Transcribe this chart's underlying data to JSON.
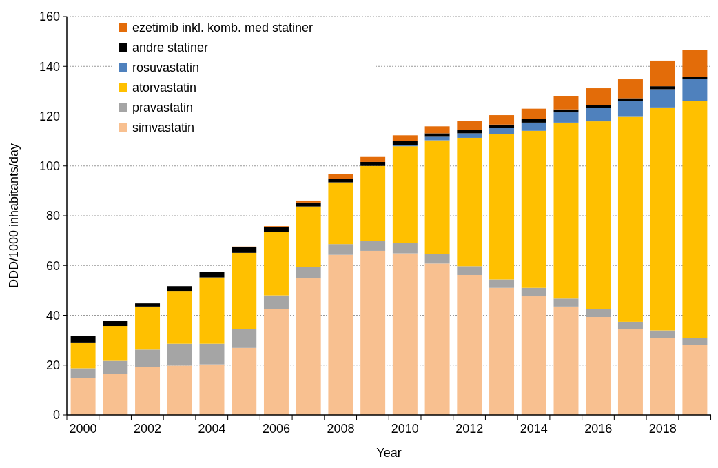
{
  "chart_data": {
    "type": "bar",
    "stacked": true,
    "xlabel": "Year",
    "ylabel": "DDD/1000 inhabitants/day",
    "categories": [
      "2000",
      null,
      "2002",
      null,
      "2004",
      null,
      "2006",
      null,
      "2008",
      null,
      "2010",
      null,
      "2012",
      null,
      "2014",
      null,
      "2016",
      null,
      "2018",
      null
    ],
    "ylim": [
      0,
      160
    ],
    "yticks": [
      0,
      20,
      40,
      60,
      80,
      100,
      120,
      140,
      160
    ],
    "grid": "y",
    "legend": "top left",
    "series": [
      {
        "name": "simvastatin",
        "color": "#f8c090",
        "values": [
          14.9,
          16.5,
          19.1,
          19.8,
          20.3,
          26.9,
          42.6,
          54.8,
          64.3,
          65.9,
          64.9,
          60.8,
          56.2,
          51.0,
          47.6,
          43.5,
          39.3,
          34.5,
          31.0,
          28.2
        ]
      },
      {
        "name": "pravastatin",
        "color": "#a5a5a5",
        "values": [
          3.8,
          5.2,
          7.1,
          8.8,
          8.3,
          7.6,
          5.4,
          4.7,
          4.3,
          4.1,
          4.1,
          3.9,
          3.5,
          3.4,
          3.4,
          3.2,
          3.2,
          2.9,
          2.9,
          2.7
        ]
      },
      {
        "name": "atorvastatin",
        "color": "#ffc000",
        "values": [
          10.4,
          14.0,
          17.3,
          21.2,
          26.6,
          30.6,
          25.5,
          24.2,
          24.8,
          30.0,
          38.9,
          45.6,
          51.6,
          58.3,
          63.1,
          70.7,
          75.4,
          82.3,
          89.6,
          95.1
        ]
      },
      {
        "name": "rosuvastatin",
        "color": "#4f81bd",
        "values": [
          0,
          0,
          0,
          0,
          0,
          0,
          0,
          0,
          0,
          0,
          0.6,
          1.4,
          1.8,
          2.6,
          3.3,
          4.1,
          5.3,
          6.4,
          7.3,
          8.8
        ]
      },
      {
        "name": "andre statiner",
        "color": "#000000",
        "values": [
          2.7,
          2.1,
          1.3,
          1.9,
          2.3,
          2.3,
          2.0,
          1.6,
          1.5,
          1.6,
          1.5,
          1.4,
          1.5,
          1.3,
          1.5,
          1.2,
          1.3,
          1.1,
          1.2,
          1.1
        ]
      },
      {
        "name": "ezetimib inkl. komb. med statiner",
        "color": "#e36c09",
        "values": [
          0,
          0,
          0,
          0,
          0,
          0.2,
          0.3,
          0.8,
          1.8,
          2.0,
          2.3,
          2.8,
          3.4,
          3.8,
          4.1,
          5.2,
          6.7,
          7.6,
          10.3,
          10.7
        ]
      }
    ]
  }
}
